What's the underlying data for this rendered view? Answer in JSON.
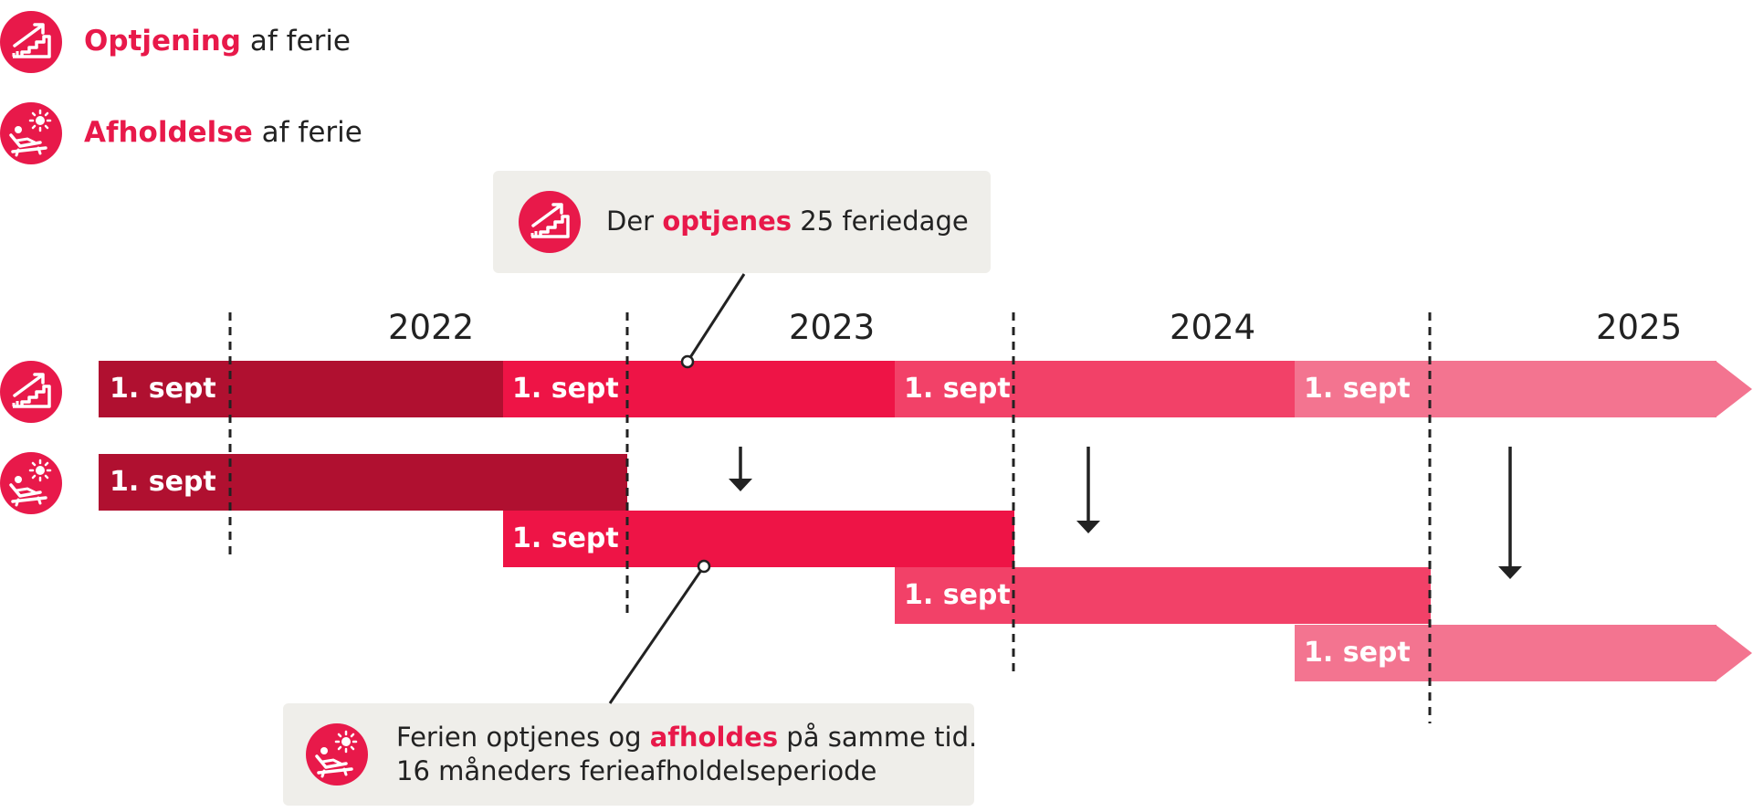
{
  "legend": {
    "earning": {
      "highlight": "Optjening",
      "rest": " af ferie"
    },
    "holding": {
      "highlight": "Afholdelse",
      "rest": " af ferie"
    }
  },
  "callout_top": {
    "prefix": "Der ",
    "highlight": "optjenes",
    "suffix": " 25 feriedage"
  },
  "callout_bottom": {
    "prefix": "Ferien optjenes og ",
    "highlight": "afholdes",
    "suffix": " på samme tid.",
    "line2": "16 måneders ferieafholdelseperiode"
  },
  "years": [
    "2022",
    "2023",
    "2024",
    "2025"
  ],
  "bars": {
    "earning_row": [
      "1. sept",
      "1. sept",
      "1. sept",
      "1. sept"
    ],
    "holding_rows": [
      "1. sept",
      "1. sept",
      "1. sept",
      "1. sept"
    ]
  },
  "colors": {
    "accent": "#e8194a",
    "period1": "#b01030",
    "period2": "#ee1446",
    "period3": "#f24168",
    "period4": "#f37490",
    "callout_bg": "#efeeea"
  },
  "icons": [
    "stairs-arrow-icon",
    "sunbather-icon"
  ]
}
